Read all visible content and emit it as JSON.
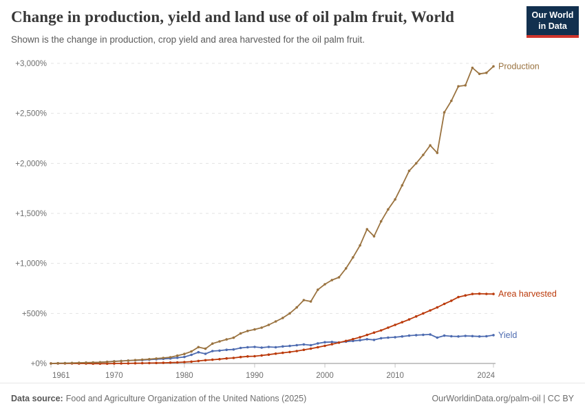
{
  "header": {
    "title": "Change in production, yield and land use of oil palm fruit, World",
    "subtitle": "Shown is the change in production, crop yield and area harvested for the oil palm fruit.",
    "logo": {
      "line1": "Our World",
      "line2": "in Data",
      "bg": "#12304f",
      "accent": "#d0342c"
    }
  },
  "chart_data": {
    "type": "line",
    "title": "Change in production, yield and land use of oil palm fruit, World",
    "xlabel": "",
    "ylabel": "",
    "xlim": [
      1961,
      2024
    ],
    "ylim": [
      0,
      3000
    ],
    "grid": "horizontal-dashed",
    "legend": "end-of-line-labels",
    "xticks": [
      1961,
      1970,
      1980,
      1990,
      2000,
      2010,
      2024
    ],
    "yticks": [
      0,
      500,
      1000,
      1500,
      2000,
      2500,
      3000
    ],
    "ytick_labels": [
      "+0%",
      "+500%",
      "+1,000%",
      "+1,500%",
      "+2,000%",
      "+2,500%",
      "+3,000%"
    ],
    "x": [
      1961,
      1962,
      1963,
      1964,
      1965,
      1966,
      1967,
      1968,
      1969,
      1970,
      1971,
      1972,
      1973,
      1974,
      1975,
      1976,
      1977,
      1978,
      1979,
      1980,
      1981,
      1982,
      1983,
      1984,
      1985,
      1986,
      1987,
      1988,
      1989,
      1990,
      1991,
      1992,
      1993,
      1994,
      1995,
      1996,
      1997,
      1998,
      1999,
      2000,
      2001,
      2002,
      2003,
      2004,
      2005,
      2006,
      2007,
      2008,
      2009,
      2010,
      2011,
      2012,
      2013,
      2014,
      2015,
      2016,
      2017,
      2018,
      2019,
      2020,
      2021,
      2022,
      2023,
      2024
    ],
    "unit": "% change since 1961",
    "series": [
      {
        "name": "Production",
        "color": "#9a7340",
        "values": [
          0,
          2,
          3,
          5,
          7,
          8,
          10,
          12,
          16,
          20,
          24,
          28,
          33,
          38,
          43,
          49,
          55,
          62,
          78,
          95,
          120,
          163,
          147,
          198,
          220,
          240,
          257,
          300,
          325,
          340,
          358,
          385,
          420,
          455,
          500,
          560,
          633,
          619,
          737,
          791,
          833,
          861,
          950,
          1060,
          1180,
          1342,
          1271,
          1420,
          1540,
          1640,
          1780,
          1925,
          2000,
          2085,
          2180,
          2105,
          2510,
          2625,
          2770,
          2780,
          2955,
          2895,
          2905,
          2970
        ]
      },
      {
        "name": "Area harvested",
        "color": "#bb3a0b",
        "values": [
          0,
          0,
          0,
          0,
          -1,
          -1,
          -2,
          -2,
          -2,
          -1,
          0,
          1,
          2,
          3,
          4,
          5,
          6,
          8,
          10,
          14,
          18,
          25,
          32,
          37,
          43,
          50,
          55,
          64,
          70,
          72,
          80,
          88,
          98,
          106,
          114,
          124,
          136,
          148,
          162,
          176,
          192,
          208,
          225,
          243,
          262,
          285,
          308,
          330,
          358,
          385,
          412,
          440,
          470,
          500,
          530,
          560,
          595,
          627,
          663,
          680,
          694,
          697,
          695,
          694
        ]
      },
      {
        "name": "Yield",
        "color": "#4d6bb0",
        "values": [
          0,
          1,
          2,
          3,
          4,
          6,
          8,
          12,
          16,
          21,
          25,
          28,
          31,
          34,
          38,
          42,
          46,
          50,
          57,
          65,
          86,
          112,
          96,
          124,
          128,
          136,
          140,
          155,
          162,
          165,
          158,
          165,
          162,
          170,
          175,
          182,
          190,
          182,
          200,
          212,
          215,
          210,
          218,
          225,
          232,
          242,
          235,
          252,
          258,
          262,
          270,
          278,
          283,
          286,
          290,
          258,
          278,
          272,
          270,
          275,
          273,
          270,
          272,
          283
        ]
      }
    ]
  },
  "footer": {
    "source_label": "Data source:",
    "source_text": "Food and Agriculture Organization of the United Nations (2025)",
    "credit": "OurWorldinData.org/palm-oil | CC BY"
  }
}
